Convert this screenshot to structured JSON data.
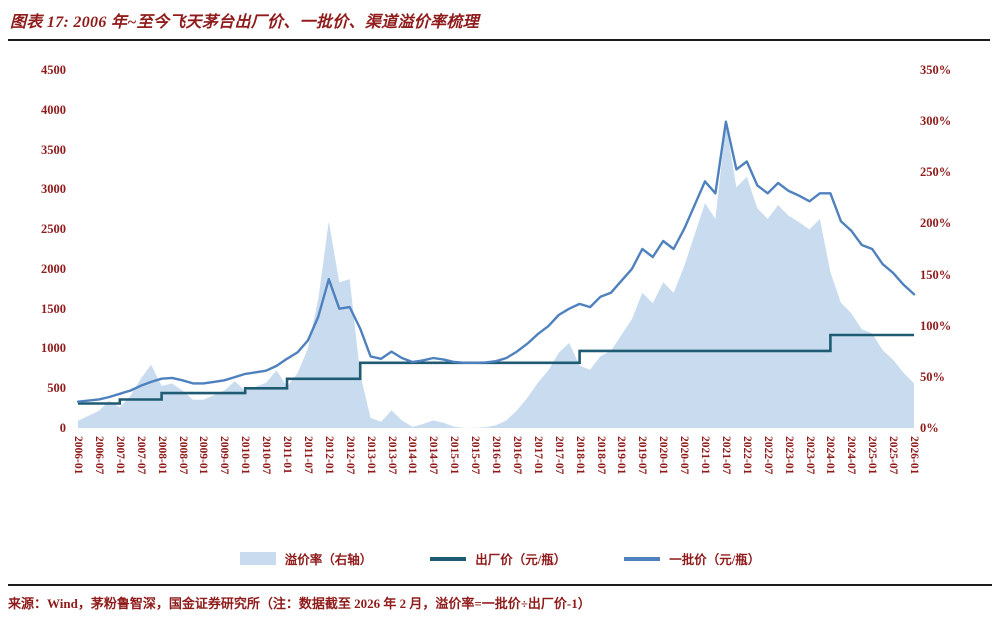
{
  "title": "图表 17: 2006 年~至今飞天茅台出厂价、一批价、渠道溢价率梳理",
  "source_note": "来源：Wind，茅粉鲁智深，国金证券研究所（注：数据截至 2026 年 2 月，溢价率=一批价÷出厂价-1）",
  "colors": {
    "accent_red": "#8F1B1B",
    "rule": "#1C1C1C",
    "area_fill": "#C9DCEF",
    "factory_line": "#1F5C73",
    "batch_line": "#4E81BD"
  },
  "chart_data": {
    "type": "line",
    "title": "2006 年~至今飞天茅台出厂价、一批价、渠道溢价率梳理",
    "x": [
      "2006-01",
      "2006-04",
      "2006-07",
      "2006-10",
      "2007-01",
      "2007-04",
      "2007-07",
      "2007-10",
      "2008-01",
      "2008-04",
      "2008-07",
      "2008-10",
      "2009-01",
      "2009-04",
      "2009-07",
      "2009-10",
      "2010-01",
      "2010-04",
      "2010-07",
      "2010-10",
      "2011-01",
      "2011-04",
      "2011-07",
      "2011-10",
      "2012-01",
      "2012-04",
      "2012-07",
      "2012-10",
      "2013-01",
      "2013-04",
      "2013-07",
      "2013-10",
      "2014-01",
      "2014-04",
      "2014-07",
      "2014-10",
      "2015-01",
      "2015-04",
      "2015-07",
      "2015-10",
      "2016-01",
      "2016-04",
      "2016-07",
      "2016-10",
      "2017-01",
      "2017-04",
      "2017-07",
      "2017-10",
      "2018-01",
      "2018-04",
      "2018-07",
      "2018-10",
      "2019-01",
      "2019-04",
      "2019-07",
      "2019-10",
      "2020-01",
      "2020-04",
      "2020-07",
      "2020-10",
      "2021-01",
      "2021-04",
      "2021-07",
      "2021-10",
      "2022-01",
      "2022-04",
      "2022-07",
      "2022-10",
      "2023-01",
      "2023-04",
      "2023-07",
      "2023-10",
      "2024-01",
      "2024-04",
      "2024-07",
      "2024-10",
      "2025-01",
      "2025-04",
      "2025-07",
      "2025-10",
      "2026-01"
    ],
    "x_tick_every": 2,
    "left_axis": {
      "min": 0,
      "max": 4500,
      "step": 500,
      "unit": ""
    },
    "right_axis": {
      "min": 0,
      "max": 350,
      "step": 50,
      "unit": "%"
    },
    "legend_position": "bottom",
    "grid": false,
    "note_formula": "溢价率=一批价÷出厂价-1",
    "series": [
      {
        "key": "premium",
        "name": "溢价率（右轴）",
        "style": "area",
        "axis": "right",
        "unit": "%",
        "values": [
          7.1,
          12.0,
          16.9,
          26.6,
          20.1,
          31.3,
          48.0,
          62.0,
          41.2,
          43.5,
          36.7,
          27.6,
          27.6,
          32.1,
          36.7,
          45.8,
          36.3,
          40.3,
          44.3,
          56.3,
          40.5,
          53.5,
          77.7,
          126.2,
          202.1,
          142.3,
          145.6,
          52.6,
          9.9,
          6.2,
          17.2,
          7.4,
          1.3,
          3.8,
          7.4,
          5.0,
          1.3,
          0.1,
          0.1,
          0.7,
          2.6,
          7.4,
          17.2,
          29.4,
          44.1,
          56.3,
          73.4,
          83.2,
          61.0,
          56.9,
          70.3,
          75.4,
          90.9,
          106.4,
          132.2,
          121.9,
          142.5,
          132.2,
          158.0,
          188.9,
          219.9,
          204.4,
          297.3,
          235.4,
          245.7,
          214.8,
          204.4,
          217.9,
          207.5,
          201.3,
          194.1,
          204.4,
          152.4,
          122.4,
          112.1,
          96.7,
          92.5,
          76.2,
          66.8,
          54.0,
          43.7
        ]
      },
      {
        "key": "factory",
        "name": "出厂价（元/瓶）",
        "style": "step",
        "axis": "left",
        "unit": "元/瓶",
        "values": [
          308,
          308,
          308,
          308,
          358,
          358,
          358,
          358,
          439,
          439,
          439,
          439,
          439,
          439,
          439,
          439,
          499,
          499,
          499,
          499,
          619,
          619,
          619,
          619,
          619,
          619,
          619,
          819,
          819,
          819,
          819,
          819,
          819,
          819,
          819,
          819,
          819,
          819,
          819,
          819,
          819,
          819,
          819,
          819,
          819,
          819,
          819,
          819,
          969,
          969,
          969,
          969,
          969,
          969,
          969,
          969,
          969,
          969,
          969,
          969,
          969,
          969,
          969,
          969,
          969,
          969,
          969,
          969,
          969,
          969,
          969,
          969,
          1169,
          1169,
          1169,
          1169,
          1169,
          1169,
          1169,
          1169,
          1169
        ]
      },
      {
        "key": "batch",
        "name": "一批价（元/瓶）",
        "style": "line",
        "axis": "left",
        "unit": "元/瓶",
        "values": [
          330,
          345,
          360,
          390,
          430,
          470,
          530,
          580,
          620,
          630,
          600,
          560,
          560,
          580,
          600,
          640,
          680,
          700,
          720,
          780,
          870,
          950,
          1100,
          1400,
          1870,
          1500,
          1520,
          1250,
          900,
          870,
          960,
          880,
          830,
          850,
          880,
          860,
          830,
          820,
          820,
          825,
          840,
          880,
          960,
          1060,
          1180,
          1280,
          1420,
          1500,
          1560,
          1520,
          1650,
          1700,
          1850,
          2000,
          2250,
          2150,
          2350,
          2250,
          2500,
          2800,
          3100,
          2950,
          3850,
          3250,
          3350,
          3050,
          2950,
          3080,
          2980,
          2920,
          2850,
          2950,
          2950,
          2600,
          2480,
          2300,
          2250,
          2060,
          1950,
          1800,
          1680
        ]
      }
    ]
  }
}
